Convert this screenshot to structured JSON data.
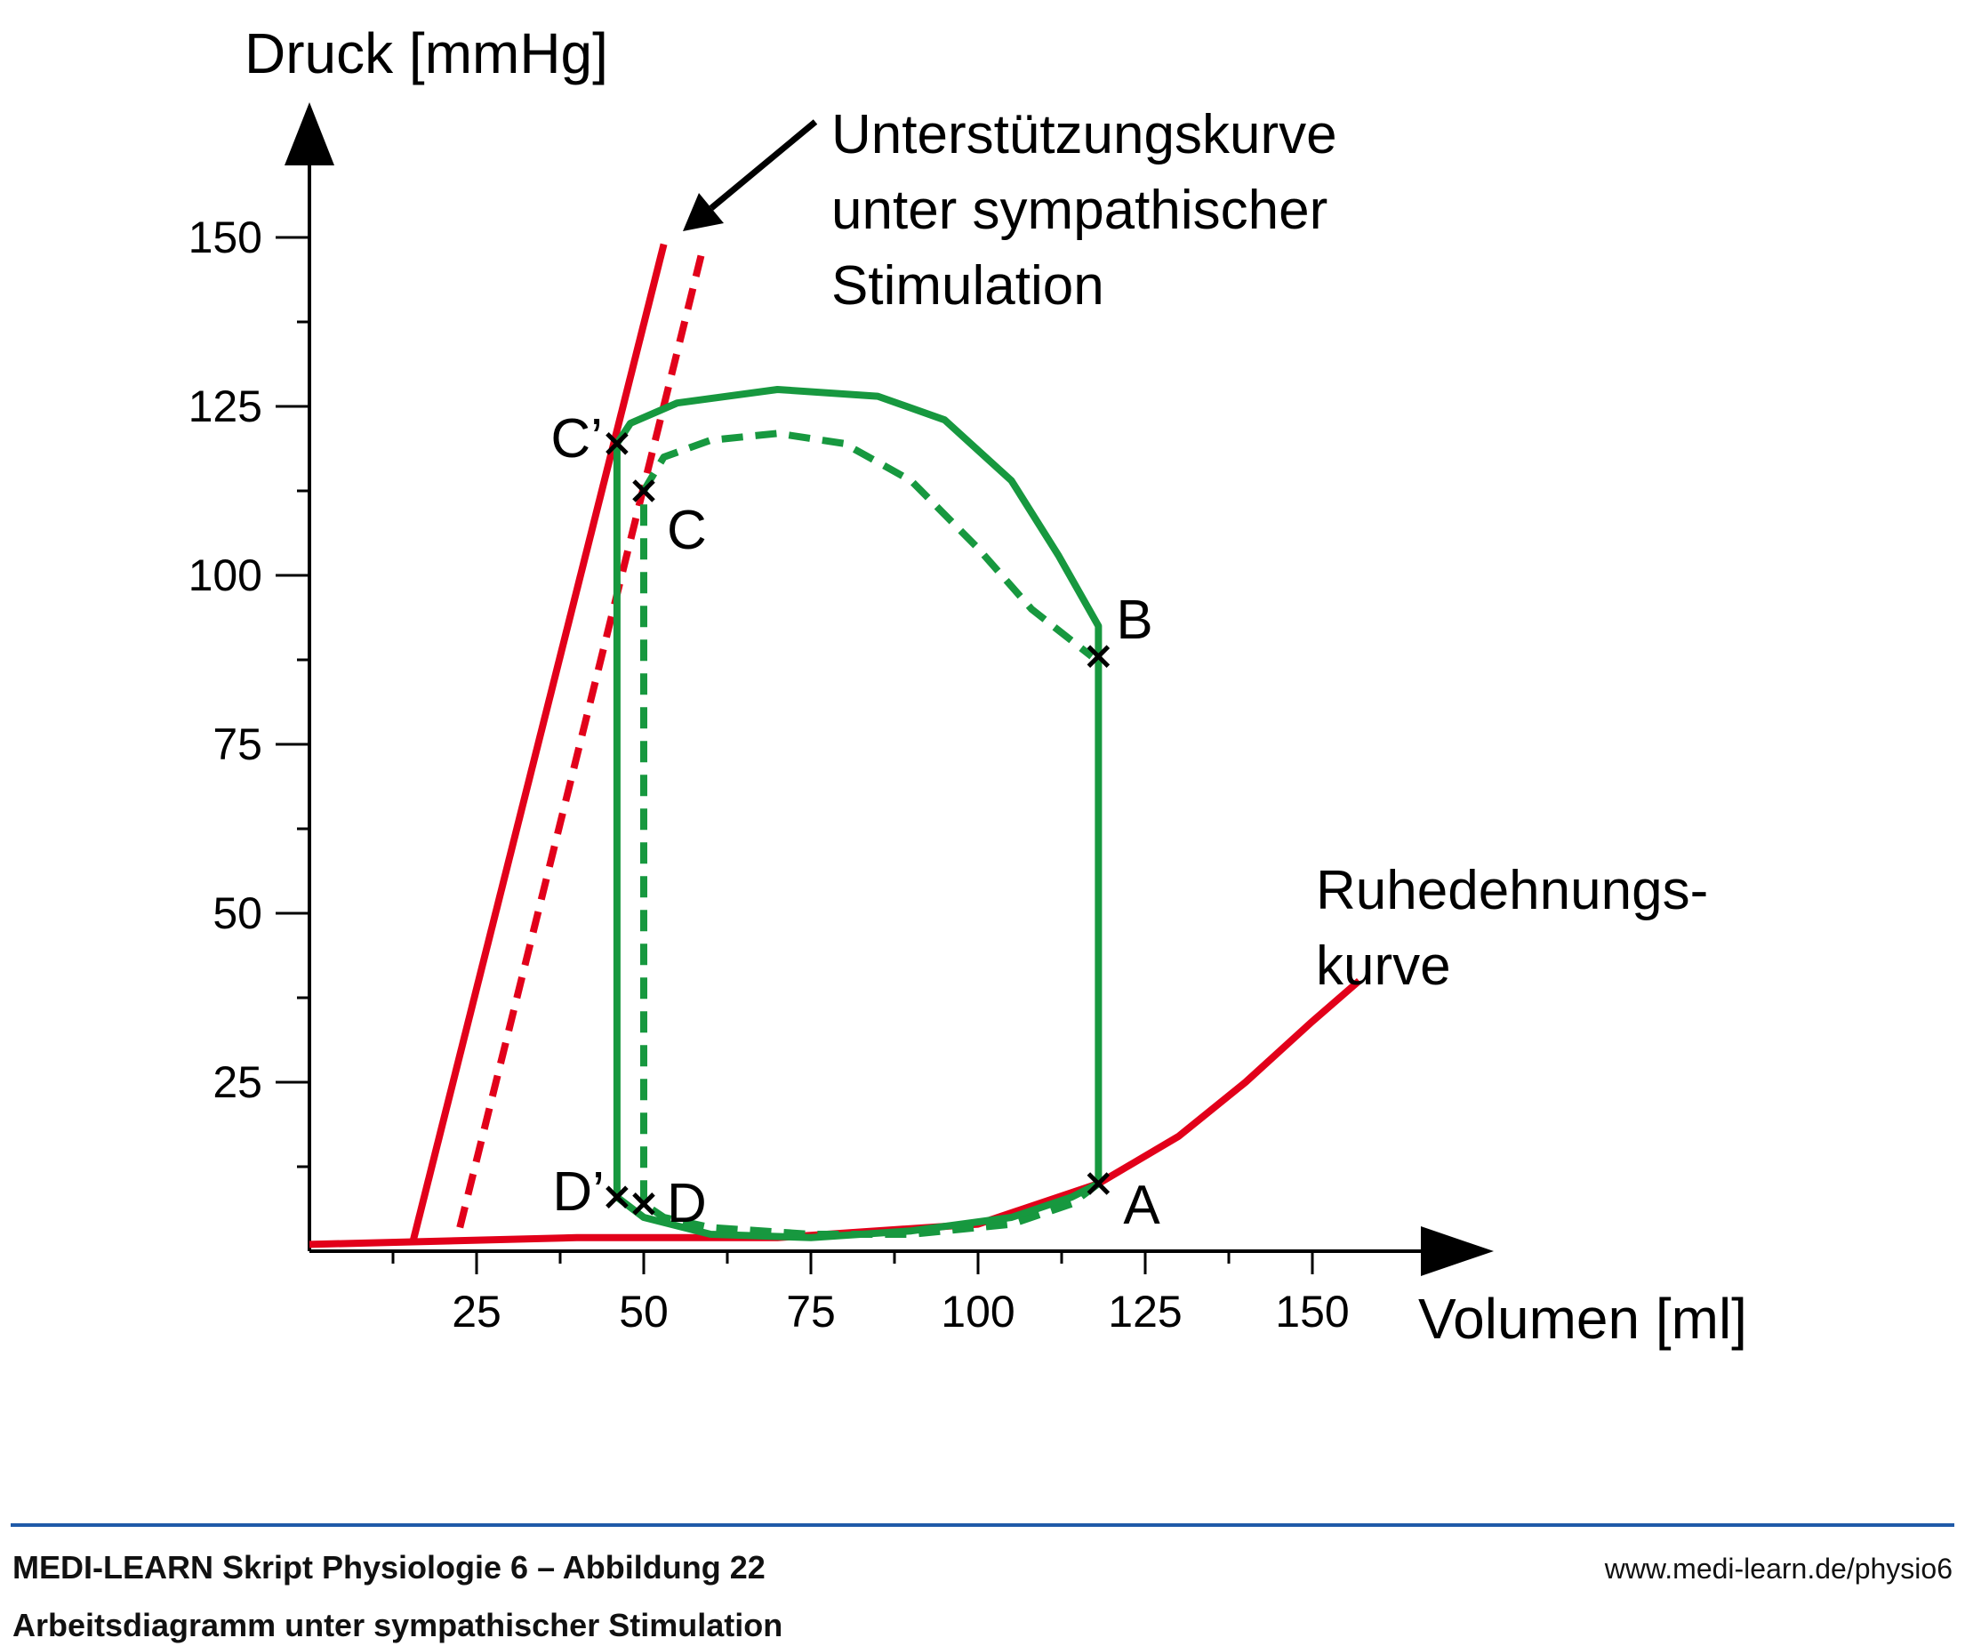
{
  "chart_data": {
    "type": "line",
    "xlabel": "Volumen [ml]",
    "ylabel": "Druck [mmHg]",
    "xlim": [
      0,
      170
    ],
    "ylim": [
      0,
      160
    ],
    "x_ticks": [
      25,
      50,
      75,
      100,
      125,
      150
    ],
    "y_ticks": [
      25,
      50,
      75,
      100,
      125,
      150
    ],
    "colors": {
      "red": "#e2001a",
      "green": "#17983f",
      "black": "#000000"
    },
    "series": [
      {
        "style": "solid",
        "color": "#e2001a",
        "points": [
          [
            0,
            1
          ],
          [
            40,
            2
          ],
          [
            70,
            2
          ],
          [
            100,
            4
          ],
          [
            118,
            10
          ],
          [
            130,
            17
          ],
          [
            140,
            25
          ],
          [
            150,
            34
          ],
          [
            157,
            40
          ]
        ]
      },
      {
        "style": "solid",
        "color": "#e2001a",
        "points": [
          [
            15.5,
            1.5
          ],
          [
            53,
            149
          ]
        ]
      },
      {
        "style": "dashed",
        "color": "#e2001a",
        "points": [
          [
            22.5,
            3.5
          ],
          [
            59,
            149
          ]
        ]
      },
      {
        "style": "solid",
        "color": "#17983f",
        "points": [
          [
            118,
            10
          ],
          [
            114,
            8
          ],
          [
            105,
            5
          ],
          [
            90,
            3
          ],
          [
            75,
            2
          ],
          [
            60,
            2.5
          ],
          [
            50,
            5
          ],
          [
            46,
            8
          ],
          [
            46,
            119.5
          ],
          [
            48,
            122.5
          ],
          [
            55,
            125.5
          ],
          [
            70,
            127.5
          ],
          [
            85,
            126.5
          ],
          [
            95,
            123
          ],
          [
            105,
            114
          ],
          [
            112,
            103
          ],
          [
            118,
            92.5
          ],
          [
            118,
            10
          ]
        ]
      },
      {
        "style": "dashed",
        "color": "#17983f",
        "points": [
          [
            118,
            10
          ],
          [
            114,
            7
          ],
          [
            105,
            4
          ],
          [
            90,
            2.5
          ],
          [
            75,
            2.5
          ],
          [
            60,
            3.5
          ],
          [
            53,
            5
          ],
          [
            50,
            7
          ],
          [
            50,
            112.5
          ],
          [
            53,
            117.5
          ],
          [
            60,
            120
          ],
          [
            70,
            121
          ],
          [
            80,
            119.5
          ],
          [
            90,
            114
          ],
          [
            100,
            104
          ],
          [
            108,
            95
          ],
          [
            117,
            88
          ]
        ]
      }
    ],
    "points": [
      {
        "label": "A",
        "x": 118,
        "y": 10
      },
      {
        "label": "B",
        "x": 118,
        "y": 88
      },
      {
        "label": "C",
        "x": 50,
        "y": 112.5
      },
      {
        "label": "C’",
        "x": 46,
        "y": 119.5
      },
      {
        "label": "D",
        "x": 50,
        "y": 7
      },
      {
        "label": "D’",
        "x": 46,
        "y": 8
      }
    ],
    "annotations": {
      "support_curve": [
        "Unterstützungskurve",
        "unter sympathischer",
        "Stimulation"
      ],
      "rest_curve": [
        "Ruhedehnungs-",
        "kurve"
      ]
    }
  },
  "footer": {
    "title": "MEDI-LEARN Skript Physiologie 6 – Abbildung 22",
    "subtitle": "Arbeitsdiagramm unter sympathischer Stimulation",
    "url": "www.medi-learn.de/physio6"
  }
}
